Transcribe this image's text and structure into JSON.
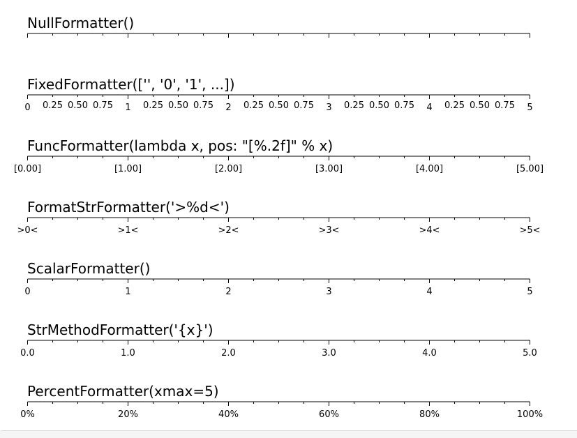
{
  "chart_data": [
    {
      "type": "axis",
      "title": "NullFormatter()",
      "xlim": [
        0,
        5
      ],
      "major_ticks": [
        0,
        1,
        2,
        3,
        4,
        5
      ],
      "minor_ticks": [
        0.25,
        0.5,
        0.75,
        1.25,
        1.5,
        1.75,
        2.25,
        2.5,
        2.75,
        3.25,
        3.5,
        3.75,
        4.25,
        4.5,
        4.75
      ],
      "major_labels": [],
      "minor_labels": []
    },
    {
      "type": "axis",
      "title": "FixedFormatter(['', '0', '1', ...])",
      "xlim": [
        0,
        5
      ],
      "major_ticks": [
        0,
        1,
        2,
        3,
        4,
        5
      ],
      "minor_ticks": [
        0.25,
        0.5,
        0.75,
        1.25,
        1.5,
        1.75,
        2.25,
        2.5,
        2.75,
        3.25,
        3.5,
        3.75,
        4.25,
        4.5,
        4.75
      ],
      "major_labels": [
        "0",
        "1",
        "2",
        "3",
        "4",
        "5"
      ],
      "minor_labels": [
        "0.25",
        "0.50",
        "0.75",
        "0.25",
        "0.50",
        "0.75",
        "0.25",
        "0.50",
        "0.75",
        "0.25",
        "0.50",
        "0.75",
        "0.25",
        "0.50",
        "0.75"
      ]
    },
    {
      "type": "axis",
      "title": "FuncFormatter(lambda x, pos: \"[%.2f]\" % x)",
      "xlim": [
        0,
        5
      ],
      "major_ticks": [
        0,
        1,
        2,
        3,
        4,
        5
      ],
      "minor_ticks": [
        0.25,
        0.5,
        0.75,
        1.25,
        1.5,
        1.75,
        2.25,
        2.5,
        2.75,
        3.25,
        3.5,
        3.75,
        4.25,
        4.5,
        4.75
      ],
      "major_labels": [
        "[0.00]",
        "[1.00]",
        "[2.00]",
        "[3.00]",
        "[4.00]",
        "[5.00]"
      ],
      "minor_labels": []
    },
    {
      "type": "axis",
      "title": "FormatStrFormatter('>%d<')",
      "xlim": [
        0,
        5
      ],
      "major_ticks": [
        0,
        1,
        2,
        3,
        4,
        5
      ],
      "minor_ticks": [
        0.25,
        0.5,
        0.75,
        1.25,
        1.5,
        1.75,
        2.25,
        2.5,
        2.75,
        3.25,
        3.5,
        3.75,
        4.25,
        4.5,
        4.75
      ],
      "major_labels": [
        ">0<",
        ">1<",
        ">2<",
        ">3<",
        ">4<",
        ">5<"
      ],
      "minor_labels": []
    },
    {
      "type": "axis",
      "title": "ScalarFormatter()",
      "xlim": [
        0,
        5
      ],
      "major_ticks": [
        0,
        1,
        2,
        3,
        4,
        5
      ],
      "minor_ticks": [
        0.25,
        0.5,
        0.75,
        1.25,
        1.5,
        1.75,
        2.25,
        2.5,
        2.75,
        3.25,
        3.5,
        3.75,
        4.25,
        4.5,
        4.75
      ],
      "major_labels": [
        "0",
        "1",
        "2",
        "3",
        "4",
        "5"
      ],
      "minor_labels": []
    },
    {
      "type": "axis",
      "title": "StrMethodFormatter('{x}')",
      "xlim": [
        0,
        5
      ],
      "major_ticks": [
        0,
        1,
        2,
        3,
        4,
        5
      ],
      "minor_ticks": [
        0.25,
        0.5,
        0.75,
        1.25,
        1.5,
        1.75,
        2.25,
        2.5,
        2.75,
        3.25,
        3.5,
        3.75,
        4.25,
        4.5,
        4.75
      ],
      "major_labels": [
        "0.0",
        "1.0",
        "2.0",
        "3.0",
        "4.0",
        "5.0"
      ],
      "minor_labels": []
    },
    {
      "type": "axis",
      "title": "PercentFormatter(xmax=5)",
      "xlim": [
        0,
        5
      ],
      "major_ticks": [
        0,
        1,
        2,
        3,
        4,
        5
      ],
      "minor_ticks": [
        0.25,
        0.5,
        0.75,
        1.25,
        1.5,
        1.75,
        2.25,
        2.5,
        2.75,
        3.25,
        3.5,
        3.75,
        4.25,
        4.5,
        4.75
      ],
      "major_labels": [
        "0%",
        "20%",
        "40%",
        "60%",
        "80%",
        "100%"
      ],
      "minor_labels": []
    }
  ]
}
